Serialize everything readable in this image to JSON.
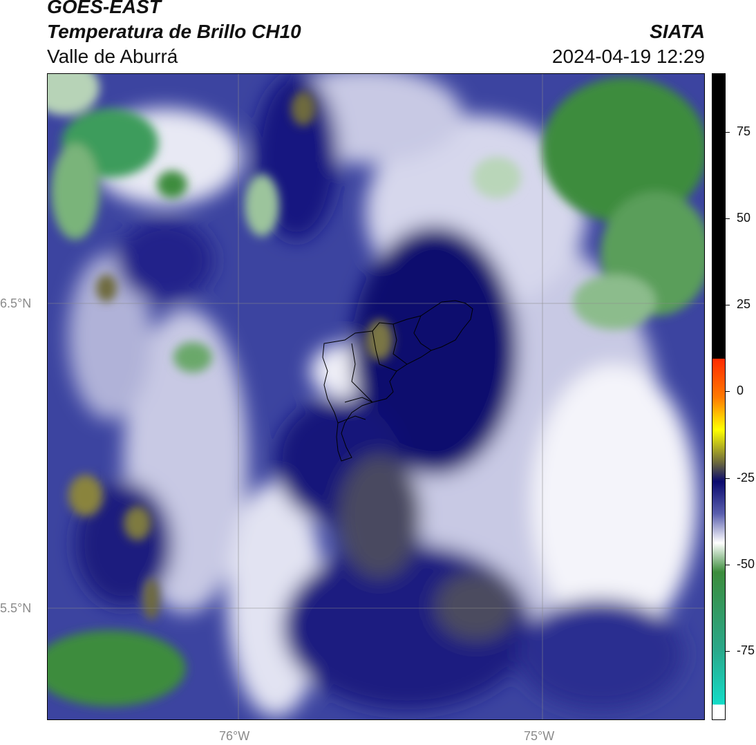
{
  "header": {
    "satellite": "GOES-EAST",
    "product": "Temperatura de Brillo CH10",
    "region": "Valle de Aburrá",
    "agency": "SIATA",
    "timestamp": "2024-04-19 12:29"
  },
  "map": {
    "lat_labels": [
      "6.5°N",
      "5.5°N"
    ],
    "lon_labels": [
      "76°W",
      "75°W"
    ]
  },
  "colorbar": {
    "ticks": [
      "75",
      "50",
      "25",
      "0",
      "-25",
      "-50",
      "-75"
    ],
    "tick_values": [
      75,
      50,
      25,
      0,
      -25,
      -50,
      -75
    ],
    "range": [
      -95,
      92
    ],
    "colors": {
      "hot": "#000000",
      "warm_red": "#ff2a00",
      "orange": "#ff9a00",
      "yellow": "#ffff00",
      "olive": "#6e6b3c",
      "dark_navy": "#0a0a6e",
      "mid_blue": "#5a5fae",
      "pale_lavender": "#c8c9e4",
      "white": "#ffffff",
      "green": "#3c8c3c",
      "teal": "#14dcc8"
    }
  }
}
